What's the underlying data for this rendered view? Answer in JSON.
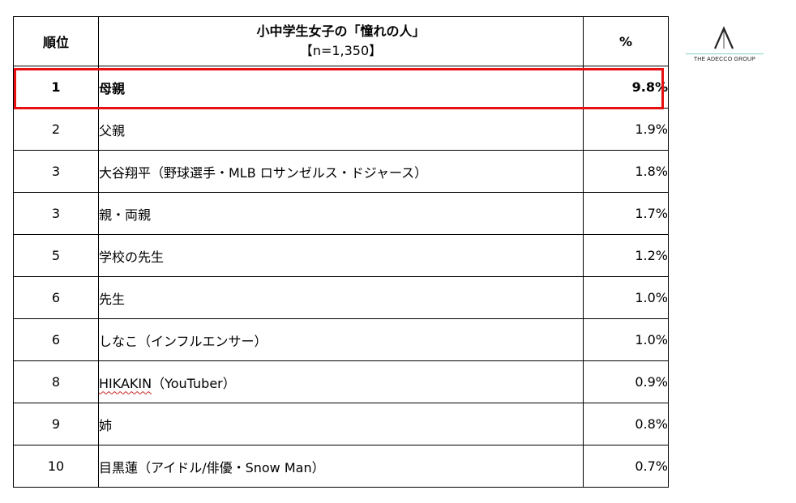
{
  "table": {
    "headers": {
      "rank": "順位",
      "title": "小中学生女子の「憧れの人」",
      "sample": "【n=1,350】",
      "percent": "%"
    },
    "rows": [
      {
        "rank": "1",
        "name": "母親",
        "pct": "9.8%"
      },
      {
        "rank": "2",
        "name": "父親",
        "pct": "1.9%"
      },
      {
        "rank": "3",
        "name": "大谷翔平（野球選手・MLB ロサンゼルス・ドジャース）",
        "pct": "1.8%"
      },
      {
        "rank": "3",
        "name": "親・両親",
        "pct": "1.7%"
      },
      {
        "rank": "5",
        "name": "学校の先生",
        "pct": "1.2%"
      },
      {
        "rank": "6",
        "name": "先生",
        "pct": "1.0%"
      },
      {
        "rank": "6",
        "name": "しなこ（インフルエンサー）",
        "pct": "1.0%"
      },
      {
        "rank": "8",
        "name_main": "HIKAKIN",
        "name_rest": "（YouTuber）",
        "pct": "0.9%"
      },
      {
        "rank": "9",
        "name": "姉",
        "pct": "0.8%"
      },
      {
        "rank": "10",
        "name": "目黒蓮（アイドル/俳優・Snow Man）",
        "pct": "0.7%"
      }
    ]
  },
  "logo": {
    "icon": "adecco-a-mark-icon",
    "text": "THE ADECCO GROUP"
  },
  "colors": {
    "highlight_border": "#e81010",
    "logo_rule": "#7fd0c8"
  }
}
